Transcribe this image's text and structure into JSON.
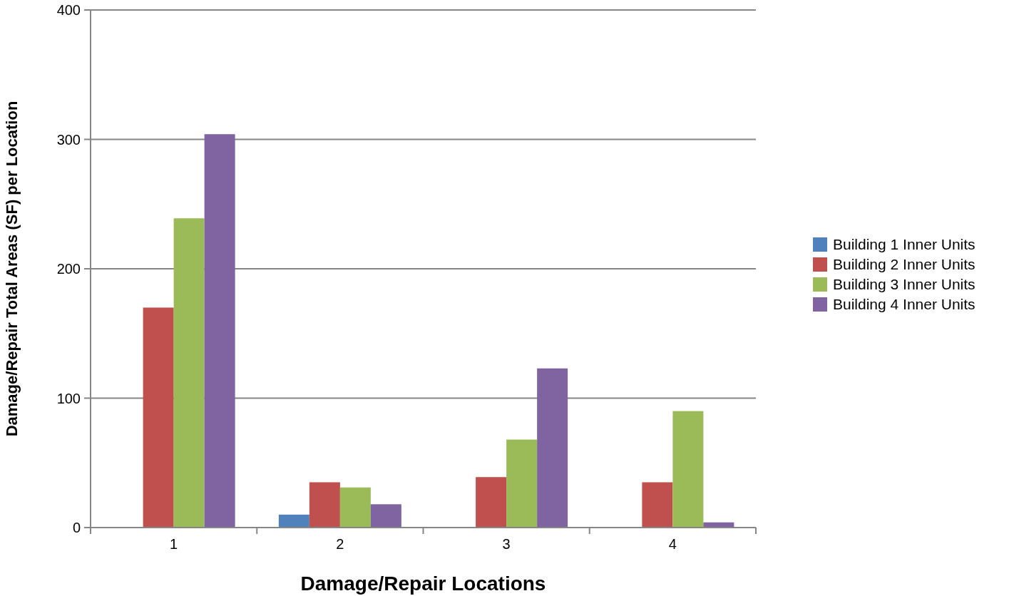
{
  "chart_data": {
    "type": "bar",
    "xlabel": "Damage/Repair Locations",
    "ylabel": "Damage/Repair Total Areas (SF) per Location",
    "categories": [
      "1",
      "2",
      "3",
      "4"
    ],
    "series": [
      {
        "name": "Building 1 Inner Units",
        "color": "#4f81bd",
        "values": [
          0,
          10,
          0,
          0
        ]
      },
      {
        "name": "Building 2 Inner Units",
        "color": "#c0504d",
        "values": [
          170,
          35,
          39,
          35
        ]
      },
      {
        "name": "Building 3 Inner Units",
        "color": "#9bbb59",
        "values": [
          239,
          31,
          68,
          90
        ]
      },
      {
        "name": "Building 4 Inner Units",
        "color": "#8064a2",
        "values": [
          304,
          18,
          123,
          4
        ]
      }
    ],
    "ylim": [
      0,
      400
    ],
    "yticks": [
      0,
      100,
      200,
      300,
      400
    ],
    "grid": "y",
    "legend": "right"
  }
}
